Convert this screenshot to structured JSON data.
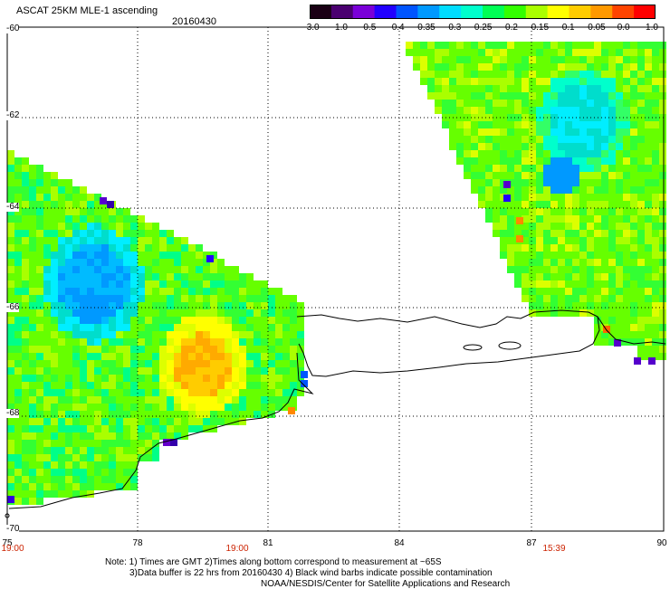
{
  "header": {
    "title": "ASCAT 25KM MLE-1 ascending",
    "date": "20160430"
  },
  "colorbar": {
    "labels": [
      "-3.0",
      "-1.0",
      "-0.5",
      "-0.4",
      "-0.35",
      "-0.3",
      "-0.25",
      "-0.2",
      "-0.15",
      "-0.1",
      "-0.05",
      "0.0",
      "1.0"
    ],
    "colors": [
      "#1a0014",
      "#4a0070",
      "#7a00d8",
      "#2200ff",
      "#0055ff",
      "#0099ff",
      "#00ddff",
      "#00ffcc",
      "#00ff55",
      "#33ff00",
      "#aaff00",
      "#ffff00",
      "#ffcc00",
      "#ff9900",
      "#ff4400",
      "#ff0000"
    ]
  },
  "axes": {
    "lat_labels": [
      "-60",
      "-62",
      "-64",
      "-66",
      "-68",
      "-70"
    ],
    "lon_labels": [
      "75",
      "78",
      "81",
      "84",
      "87",
      "90"
    ],
    "lon_range": [
      75,
      90
    ],
    "lat_range": [
      -60,
      -70
    ]
  },
  "times": [
    "19:00",
    "19:00",
    "15:39"
  ],
  "notes": {
    "line1": "Note: 1) Times are GMT 2)Times along bottom correspond to measurement at ~65S",
    "line2": "3)Data buffer is 22 hrs from 20160430 4) Black wind barbs indicate possible contamination",
    "line3": "NOAA/NESDIS/Center for Satellite Applications and Research"
  }
}
